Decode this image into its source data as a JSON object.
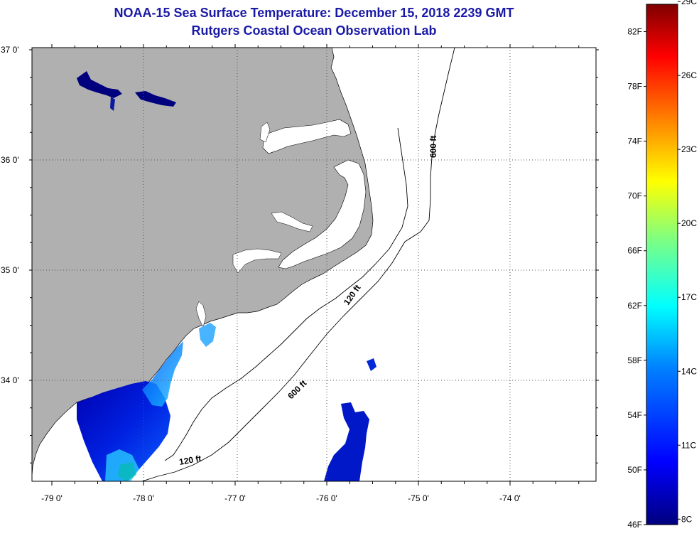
{
  "title": "NOAA-15 Sea Surface Temperature:  December 15, 2018 2239 GMT",
  "subtitle": "Rutgers Coastal Ocean Observation Lab",
  "lat_labels": [
    {
      "label": "37 0'",
      "lat": 37.0
    },
    {
      "label": "36 0'",
      "lat": 36.0
    },
    {
      "label": "35 0'",
      "lat": 35.0
    },
    {
      "label": "34 0'",
      "lat": 34.0
    }
  ],
  "lon_labels": [
    {
      "label": "-79 0'",
      "lon": -79.0
    },
    {
      "label": "-78 0'",
      "lon": -78.0
    },
    {
      "label": "-77 0'",
      "lon": -77.0
    },
    {
      "label": "-76 0'",
      "lon": -76.0
    },
    {
      "label": "-75 0'",
      "lon": -75.0
    },
    {
      "label": "-74 0'",
      "lon": -74.0
    }
  ],
  "contour_labels": [
    "600 ft",
    "120 ft",
    "600 ft",
    "120 ft"
  ],
  "colorbar": {
    "fahrenheit": [
      "82F",
      "78F",
      "74F",
      "70F",
      "66F",
      "62F",
      "58F",
      "54F",
      "50F",
      "46F"
    ],
    "celsius": [
      "29C",
      "26C",
      "23C",
      "20C",
      "17C",
      "14C",
      "11C",
      "8C"
    ],
    "min_f": 46,
    "max_f": 84,
    "colors": [
      "#00007f",
      "#0000ff",
      "#0080ff",
      "#00ffff",
      "#80ff80",
      "#ffff00",
      "#ff8000",
      "#ff0000",
      "#7f0000"
    ]
  },
  "colors": {
    "land": "#b0b0b0",
    "ocean": "#ffffff",
    "title": "#1a1aa6"
  }
}
